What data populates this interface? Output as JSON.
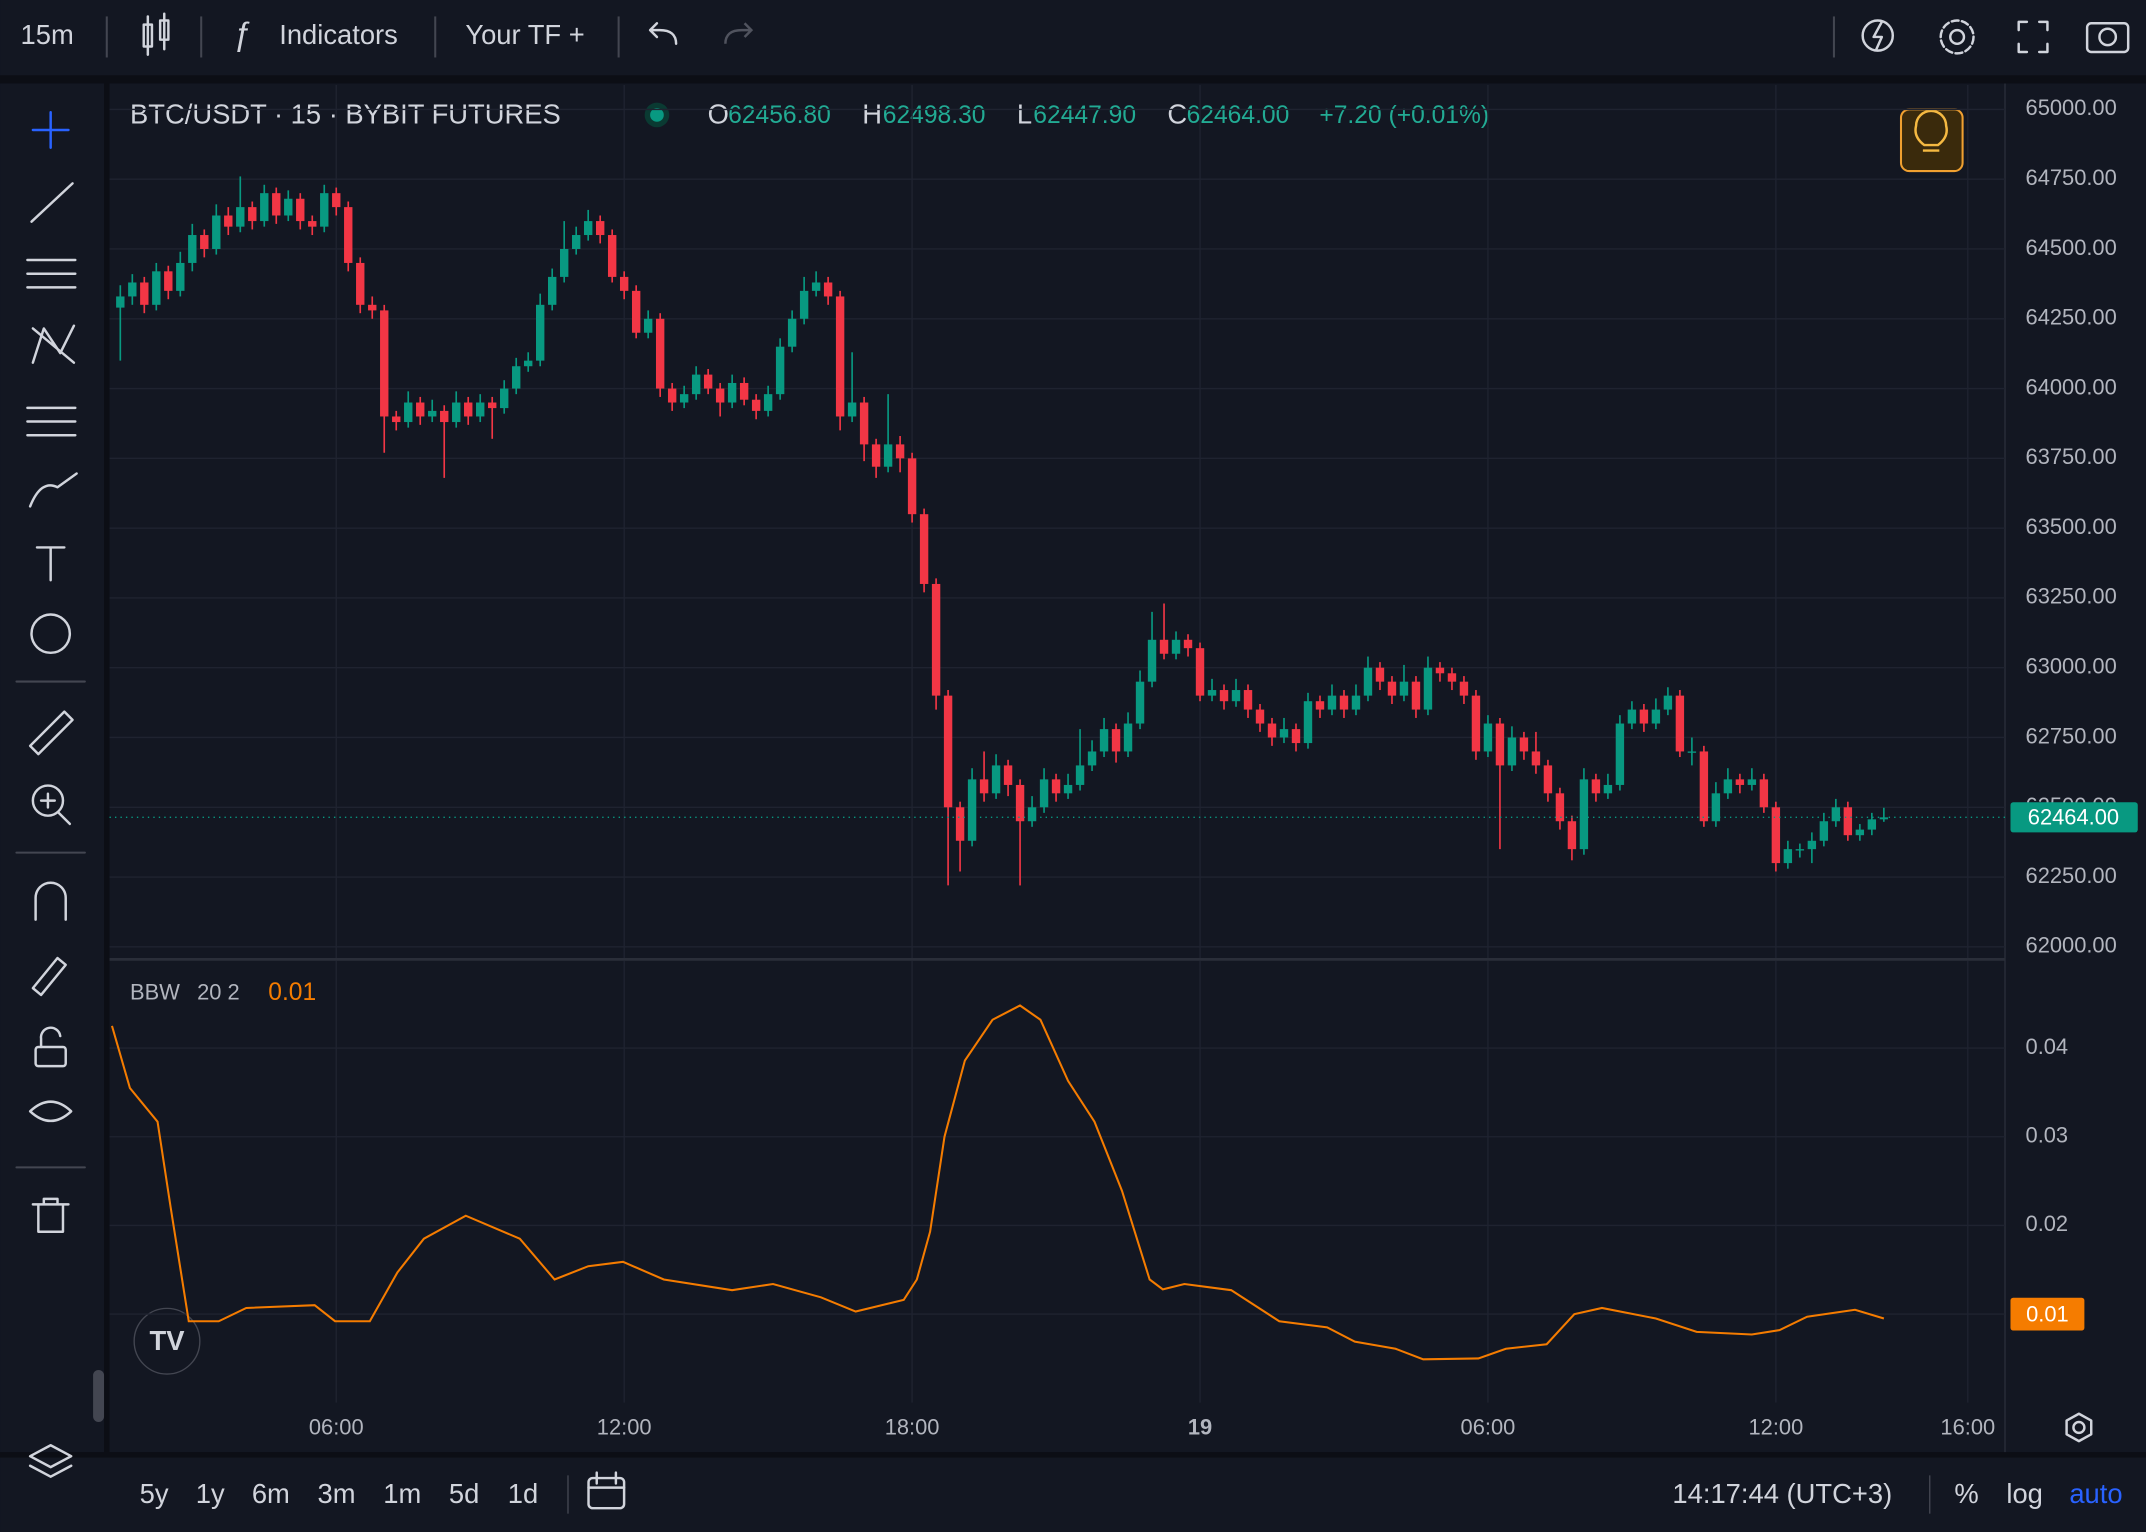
{
  "toolbar": {
    "interval": "15m",
    "indicators": "Indicators",
    "timeframe": "Your TF +"
  },
  "chart_data": {
    "type": "candlestick",
    "title": "BTC/USDT · 15 · BYBIT FUTURES",
    "legend": {
      "open_key": "O",
      "open": {
        "value": 62456.8,
        "label": "62456.80"
      },
      "high_key": "H",
      "high": {
        "value": 62498.3,
        "label": "62498.30"
      },
      "low_key": "L",
      "low": {
        "value": 62447.9,
        "label": "62447.90"
      },
      "close_key": "C",
      "close": {
        "value": 62464,
        "label": "62464.00"
      },
      "change": "+7.20 (+0.01%)"
    },
    "up_color": "#089981",
    "down_color": "#f23645",
    "grid": true,
    "xlim": [
      -0.9,
      157.1
    ],
    "xticks": [
      {
        "value": 18,
        "label": "06:00"
      },
      {
        "value": 42,
        "label": "12:00"
      },
      {
        "value": 66,
        "label": "18:00"
      },
      {
        "value": 90,
        "label": "19"
      },
      {
        "value": 114,
        "label": "06:00"
      },
      {
        "value": 138,
        "label": "12:00"
      },
      {
        "value": 154,
        "label": "16:00"
      }
    ],
    "ylim": [
      61960,
      65088
    ],
    "yticks": [
      {
        "value": 62000,
        "label": "62000.00"
      },
      {
        "value": 62250,
        "label": "62250.00"
      },
      {
        "value": 62500,
        "label": "62500.00"
      },
      {
        "value": 62750,
        "label": "62750.00"
      },
      {
        "value": 63000,
        "label": "63000.00"
      },
      {
        "value": 63250,
        "label": "63250.00"
      },
      {
        "value": 63500,
        "label": "63500.00"
      },
      {
        "value": 63750,
        "label": "63750.00"
      },
      {
        "value": 64000,
        "label": "64000.00"
      },
      {
        "value": 64250,
        "label": "64250.00"
      },
      {
        "value": 64500,
        "label": "64500.00"
      },
      {
        "value": 64750,
        "label": "64750.00"
      },
      {
        "value": 65000,
        "label": "65000.00"
      }
    ],
    "price_line": {
      "value": 62464,
      "label": "62464.00"
    },
    "candles": [
      [
        64290,
        64370,
        64100,
        64330
      ],
      [
        64330,
        64410,
        64300,
        64380
      ],
      [
        64380,
        64400,
        64270,
        64300
      ],
      [
        64300,
        64450,
        64280,
        64420
      ],
      [
        64420,
        64440,
        64320,
        64350
      ],
      [
        64350,
        64490,
        64330,
        64450
      ],
      [
        64450,
        64590,
        64420,
        64550
      ],
      [
        64550,
        64570,
        64470,
        64500
      ],
      [
        64500,
        64660,
        64480,
        64620
      ],
      [
        64620,
        64650,
        64550,
        64580
      ],
      [
        64580,
        64760,
        64560,
        64650
      ],
      [
        64650,
        64670,
        64570,
        64600
      ],
      [
        64600,
        64730,
        64580,
        64700
      ],
      [
        64700,
        64720,
        64590,
        64620
      ],
      [
        64620,
        64710,
        64600,
        64680
      ],
      [
        64680,
        64700,
        64570,
        64600
      ],
      [
        64600,
        64620,
        64550,
        64580
      ],
      [
        64580,
        64730,
        64560,
        64700
      ],
      [
        64700,
        64720,
        64620,
        64650
      ],
      [
        64650,
        64670,
        64420,
        64450
      ],
      [
        64450,
        64470,
        64270,
        64300
      ],
      [
        64300,
        64330,
        64250,
        64280
      ],
      [
        64280,
        64300,
        63770,
        63900
      ],
      [
        63900,
        63920,
        63850,
        63880
      ],
      [
        63880,
        63990,
        63860,
        63950
      ],
      [
        63950,
        63970,
        63870,
        63900
      ],
      [
        63900,
        63960,
        63880,
        63920
      ],
      [
        63920,
        63940,
        63680,
        63880
      ],
      [
        63880,
        63990,
        63860,
        63950
      ],
      [
        63950,
        63970,
        63870,
        63900
      ],
      [
        63900,
        63980,
        63880,
        63950
      ],
      [
        63950,
        63970,
        63820,
        63930
      ],
      [
        63930,
        64030,
        63910,
        64000
      ],
      [
        64000,
        64110,
        63980,
        64080
      ],
      [
        64080,
        64130,
        64060,
        64100
      ],
      [
        64100,
        64340,
        64080,
        64300
      ],
      [
        64300,
        64430,
        64280,
        64400
      ],
      [
        64400,
        64600,
        64380,
        64500
      ],
      [
        64500,
        64580,
        64480,
        64550
      ],
      [
        64550,
        64640,
        64530,
        64600
      ],
      [
        64600,
        64620,
        64520,
        64550
      ],
      [
        64550,
        64570,
        64380,
        64400
      ],
      [
        64400,
        64420,
        64320,
        64350
      ],
      [
        64350,
        64370,
        64180,
        64200
      ],
      [
        64200,
        64280,
        64180,
        64250
      ],
      [
        64250,
        64270,
        63970,
        64000
      ],
      [
        64000,
        64020,
        63920,
        63950
      ],
      [
        63950,
        64010,
        63930,
        63980
      ],
      [
        63980,
        64080,
        63960,
        64050
      ],
      [
        64050,
        64070,
        63980,
        64000
      ],
      [
        64000,
        64020,
        63900,
        63950
      ],
      [
        63950,
        64050,
        63930,
        64020
      ],
      [
        64020,
        64040,
        63940,
        63960
      ],
      [
        63960,
        63980,
        63890,
        63920
      ],
      [
        63920,
        64010,
        63900,
        63980
      ],
      [
        63980,
        64180,
        63960,
        64150
      ],
      [
        64150,
        64280,
        64130,
        64250
      ],
      [
        64250,
        64400,
        64230,
        64350
      ],
      [
        64350,
        64420,
        64330,
        64380
      ],
      [
        64380,
        64400,
        64300,
        64330
      ],
      [
        64330,
        64350,
        63850,
        63900
      ],
      [
        63900,
        64130,
        63880,
        63950
      ],
      [
        63950,
        63970,
        63740,
        63800
      ],
      [
        63800,
        63820,
        63680,
        63720
      ],
      [
        63720,
        63980,
        63700,
        63800
      ],
      [
        63800,
        63830,
        63700,
        63750
      ],
      [
        63750,
        63770,
        63520,
        63550
      ],
      [
        63550,
        63570,
        63270,
        63300
      ],
      [
        63300,
        63320,
        62850,
        62900
      ],
      [
        62900,
        62920,
        62220,
        62500
      ],
      [
        62500,
        62520,
        62270,
        62380
      ],
      [
        62380,
        62640,
        62360,
        62600
      ],
      [
        62600,
        62700,
        62520,
        62550
      ],
      [
        62550,
        62690,
        62530,
        62650
      ],
      [
        62650,
        62670,
        62540,
        62580
      ],
      [
        62580,
        62600,
        62220,
        62450
      ],
      [
        62450,
        62540,
        62430,
        62500
      ],
      [
        62500,
        62640,
        62480,
        62600
      ],
      [
        62600,
        62620,
        62520,
        62550
      ],
      [
        62550,
        62620,
        62530,
        62580
      ],
      [
        62580,
        62780,
        62560,
        62650
      ],
      [
        62650,
        62740,
        62630,
        62700
      ],
      [
        62700,
        62820,
        62680,
        62780
      ],
      [
        62780,
        62800,
        62660,
        62700
      ],
      [
        62700,
        62840,
        62680,
        62800
      ],
      [
        62800,
        62990,
        62780,
        62950
      ],
      [
        62950,
        63200,
        62930,
        63100
      ],
      [
        63100,
        63230,
        63030,
        63050
      ],
      [
        63050,
        63130,
        63030,
        63100
      ],
      [
        63100,
        63120,
        63040,
        63070
      ],
      [
        63070,
        63090,
        62880,
        62900
      ],
      [
        62900,
        62960,
        62880,
        62920
      ],
      [
        62920,
        62940,
        62850,
        62880
      ],
      [
        62880,
        62960,
        62860,
        62920
      ],
      [
        62920,
        62940,
        62820,
        62850
      ],
      [
        62850,
        62870,
        62770,
        62800
      ],
      [
        62800,
        62820,
        62720,
        62750
      ],
      [
        62750,
        62820,
        62730,
        62780
      ],
      [
        62780,
        62800,
        62700,
        62730
      ],
      [
        62730,
        62910,
        62710,
        62880
      ],
      [
        62880,
        62900,
        62820,
        62850
      ],
      [
        62850,
        62940,
        62830,
        62900
      ],
      [
        62900,
        62920,
        62820,
        62850
      ],
      [
        62850,
        62940,
        62830,
        62900
      ],
      [
        62900,
        63040,
        62880,
        63000
      ],
      [
        63000,
        63020,
        62920,
        62950
      ],
      [
        62950,
        62970,
        62870,
        62900
      ],
      [
        62900,
        63010,
        62880,
        62950
      ],
      [
        62950,
        62970,
        62820,
        62850
      ],
      [
        62850,
        63040,
        62830,
        63000
      ],
      [
        63000,
        63020,
        62950,
        62980
      ],
      [
        62980,
        63000,
        62920,
        62950
      ],
      [
        62950,
        62970,
        62870,
        62900
      ],
      [
        62900,
        62920,
        62670,
        62700
      ],
      [
        62700,
        62830,
        62680,
        62800
      ],
      [
        62800,
        62820,
        62350,
        62650
      ],
      [
        62650,
        62790,
        62630,
        62750
      ],
      [
        62750,
        62770,
        62670,
        62700
      ],
      [
        62700,
        62770,
        62620,
        62650
      ],
      [
        62650,
        62670,
        62520,
        62550
      ],
      [
        62550,
        62570,
        62420,
        62450
      ],
      [
        62450,
        62470,
        62310,
        62350
      ],
      [
        62350,
        62640,
        62330,
        62600
      ],
      [
        62600,
        62620,
        62520,
        62550
      ],
      [
        62550,
        62620,
        62530,
        62580
      ],
      [
        62580,
        62830,
        62560,
        62800
      ],
      [
        62800,
        62880,
        62780,
        62850
      ],
      [
        62850,
        62870,
        62770,
        62800
      ],
      [
        62800,
        62890,
        62780,
        62850
      ],
      [
        62850,
        62930,
        62830,
        62900
      ],
      [
        62900,
        62920,
        62680,
        62700
      ],
      [
        62700,
        62750,
        62650,
        62700
      ],
      [
        62700,
        62720,
        62430,
        62450
      ],
      [
        62450,
        62590,
        62430,
        62550
      ],
      [
        62550,
        62640,
        62530,
        62600
      ],
      [
        62600,
        62620,
        62550,
        62580
      ],
      [
        62580,
        62640,
        62560,
        62600
      ],
      [
        62600,
        62620,
        62480,
        62500
      ],
      [
        62500,
        62520,
        62270,
        62300
      ],
      [
        62300,
        62380,
        62280,
        62350
      ],
      [
        62350,
        62370,
        62320,
        62350
      ],
      [
        62350,
        62410,
        62300,
        62380
      ],
      [
        62380,
        62480,
        62360,
        62450
      ],
      [
        62450,
        62530,
        62430,
        62500
      ],
      [
        62500,
        62520,
        62380,
        62400
      ],
      [
        62400,
        62440,
        62380,
        62420
      ],
      [
        62420,
        62480,
        62400,
        62456.8
      ],
      [
        62456.8,
        62498.3,
        62447.9,
        62464
      ]
    ],
    "indicator": {
      "type": "line",
      "name": "BBW",
      "params": "20 2",
      "color": "#f57c00",
      "current": 0.01,
      "x": [
        -0.7,
        0.8,
        3.1,
        4.2,
        5.7,
        8.2,
        10.5,
        16.2,
        17.9,
        20.8,
        23.1,
        25.3,
        28.8,
        33.3,
        36.2,
        39,
        41.9,
        45.3,
        51,
        54.4,
        58.4,
        61.3,
        65.3,
        66.4,
        67.5,
        68.7,
        70.4,
        72.7,
        75,
        76.7,
        79,
        81.2,
        83.5,
        85.8,
        86.9,
        88.7,
        92.6,
        96.6,
        100.6,
        102.9,
        106.3,
        108.6,
        113.2,
        115.5,
        118.9,
        121.2,
        123.5,
        128,
        131.4,
        136,
        138.3,
        140.6,
        144.6,
        147
      ],
      "values": [
        0.0425,
        0.0355,
        0.0317,
        0.022,
        0.0092,
        0.0092,
        0.0107,
        0.011,
        0.0092,
        0.0092,
        0.0147,
        0.0185,
        0.0211,
        0.0185,
        0.0139,
        0.0154,
        0.0159,
        0.0139,
        0.0127,
        0.0134,
        0.0119,
        0.0103,
        0.0116,
        0.0139,
        0.0193,
        0.03,
        0.0386,
        0.0432,
        0.0448,
        0.0432,
        0.0363,
        0.0317,
        0.0239,
        0.0139,
        0.0128,
        0.0134,
        0.0127,
        0.0092,
        0.0085,
        0.0069,
        0.0061,
        0.0049,
        0.005,
        0.0061,
        0.0066,
        0.01,
        0.0107,
        0.0095,
        0.008,
        0.0077,
        0.0082,
        0.0097,
        0.0105,
        0.0095
      ],
      "ylim": [
        0,
        0.05
      ],
      "yticks": [
        0.01,
        0.02,
        0.03,
        0.04
      ]
    }
  },
  "footer": {
    "ranges": [
      "5y",
      "1y",
      "6m",
      "3m",
      "1m",
      "5d",
      "1d"
    ],
    "clock": "14:17:44 (UTC+3)",
    "percent": "%",
    "log": "log",
    "auto": "auto"
  }
}
